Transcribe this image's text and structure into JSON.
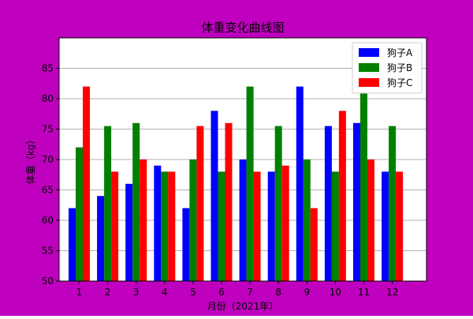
{
  "colors": {
    "background": "#BF00BF",
    "plot_area": "#FFFFFF",
    "grid": "#B0B0B0",
    "axis": "#000000"
  },
  "chart_data": {
    "type": "bar",
    "title": "体重变化曲线图",
    "xlabel": "月份（2021年）",
    "ylabel": "体重（kg）",
    "ylim": [
      50,
      90
    ],
    "yticks": [
      50,
      55,
      60,
      65,
      70,
      75,
      80,
      85
    ],
    "grid": "y",
    "legend_position": "top-right",
    "categories": [
      "1",
      "2",
      "3",
      "4",
      "5",
      "6",
      "7",
      "8",
      "9",
      "10",
      "11",
      "12"
    ],
    "series": [
      {
        "name": "狗子A",
        "color": "#0000FF",
        "values": [
          62,
          64,
          66,
          69,
          62,
          78,
          70,
          68,
          82,
          75.5,
          76,
          68
        ]
      },
      {
        "name": "狗子B",
        "color": "#008000",
        "values": [
          72,
          75.5,
          76,
          68,
          70,
          68,
          82,
          75.5,
          70,
          68,
          82,
          75.5
        ]
      },
      {
        "name": "狗子C",
        "color": "#FF0000",
        "values": [
          82,
          68,
          70,
          68,
          75.5,
          76,
          68,
          69,
          62,
          78,
          70,
          68
        ]
      }
    ]
  }
}
